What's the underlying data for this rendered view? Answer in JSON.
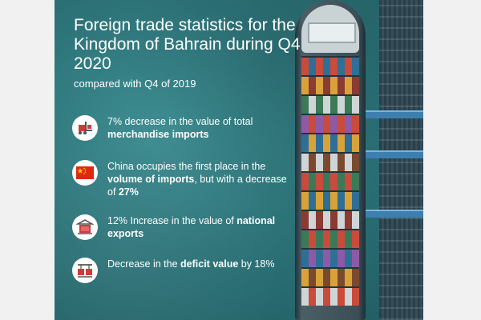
{
  "header": {
    "title": "Foreign trade statistics for the Kingdom of Bahrain during Q4 2020",
    "subtitle": "compared with Q4 of 2019"
  },
  "items": [
    {
      "icon": "forklift-icon",
      "parts": [
        {
          "t": "7% decrease in the value of total ",
          "bold": false
        },
        {
          "t": "merchandise imports",
          "bold": true
        }
      ]
    },
    {
      "icon": "china-flag-icon",
      "parts": [
        {
          "t": "China occupies the first place in the ",
          "bold": false
        },
        {
          "t": "volume of imports",
          "bold": true
        },
        {
          "t": ", but with a decrease of ",
          "bold": false
        },
        {
          "t": "27%",
          "bold": true
        }
      ]
    },
    {
      "icon": "container-crane-icon",
      "parts": [
        {
          "t": "12% Increase in the value of ",
          "bold": false
        },
        {
          "t": "national exports",
          "bold": true
        }
      ]
    },
    {
      "icon": "cargo-deficit-icon",
      "parts": [
        {
          "t": "Decrease in the ",
          "bold": false
        },
        {
          "t": "deficit value",
          "bold": true
        },
        {
          "t": " by 18%",
          "bold": false
        }
      ]
    }
  ],
  "colors": {
    "teal": "#2d7479",
    "icon_red": "#d23a3a",
    "icon_grey": "#555555",
    "flag_red": "#de2910",
    "flag_yellow": "#ffde00"
  }
}
